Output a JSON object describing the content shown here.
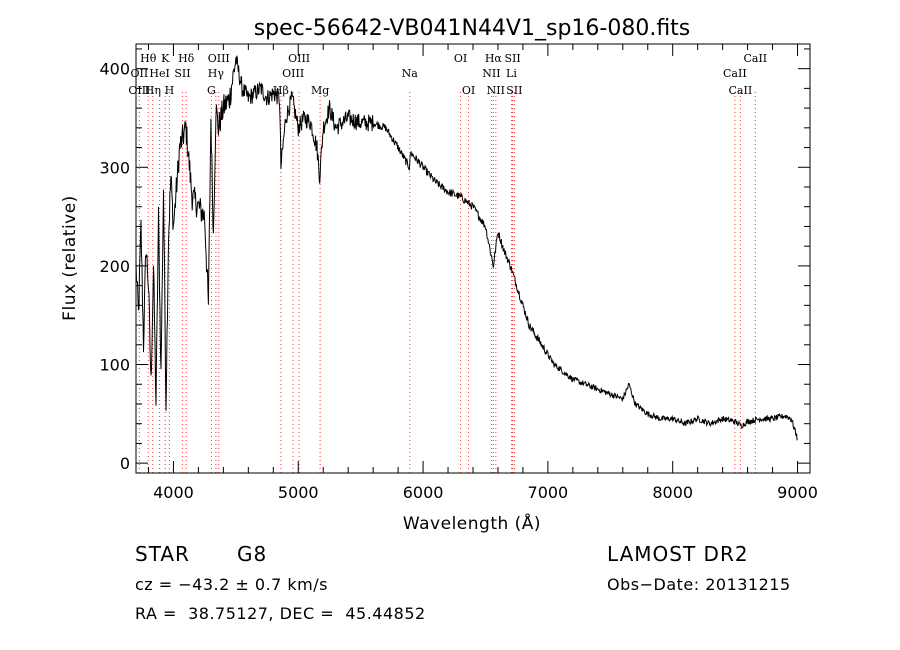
{
  "chart_data": {
    "type": "line",
    "title": "spec-56642-VB041N44V1_sp16-080.fits",
    "xlabel": "Wavelength (Å)",
    "ylabel": "Flux (relative)",
    "xlim": [
      3700,
      9100
    ],
    "ylim": [
      -10,
      425
    ],
    "xticks": [
      4000,
      5000,
      6000,
      7000,
      8000,
      9000
    ],
    "yticks": [
      0,
      100,
      200,
      300,
      400
    ],
    "grid": false,
    "series": [
      {
        "x": [
          3700,
          3720,
          3740,
          3760,
          3780,
          3800,
          3820,
          3840,
          3860,
          3880,
          3900,
          3920,
          3940,
          3960,
          3980,
          4000,
          4050,
          4100,
          4150,
          4200,
          4250,
          4280,
          4300,
          4320,
          4340,
          4360,
          4400,
          4450,
          4500,
          4550,
          4600,
          4650,
          4700,
          4750,
          4800,
          4850,
          4861,
          4900,
          4950,
          5000,
          5050,
          5100,
          5150,
          5172,
          5200,
          5250,
          5300,
          5400,
          5500,
          5600,
          5700,
          5800,
          5890,
          5900,
          6000,
          6100,
          6200,
          6300,
          6400,
          6500,
          6563,
          6600,
          6650,
          6700,
          6750,
          6800,
          6850,
          6900,
          6950,
          7000,
          7050,
          7100,
          7150,
          7200,
          7300,
          7400,
          7500,
          7600,
          7650,
          7700,
          7800,
          7900,
          8000,
          8100,
          8200,
          8300,
          8400,
          8500,
          8550,
          8600,
          8700,
          8800,
          8900,
          8950,
          9000
        ],
        "y": [
          200,
          150,
          240,
          120,
          220,
          180,
          80,
          200,
          60,
          250,
          90,
          280,
          60,
          230,
          290,
          240,
          320,
          340,
          270,
          260,
          250,
          160,
          350,
          230,
          360,
          340,
          360,
          370,
          410,
          380,
          370,
          375,
          380,
          370,
          375,
          370,
          300,
          350,
          370,
          340,
          350,
          345,
          320,
          290,
          340,
          360,
          340,
          350,
          345,
          345,
          340,
          320,
          300,
          315,
          300,
          285,
          275,
          270,
          260,
          240,
          200,
          235,
          215,
          200,
          180,
          160,
          140,
          130,
          120,
          110,
          100,
          95,
          90,
          85,
          80,
          75,
          70,
          65,
          80,
          60,
          50,
          45,
          45,
          40,
          45,
          40,
          45,
          42,
          38,
          42,
          45,
          45,
          48,
          45,
          25
        ]
      }
    ],
    "line_labels": [
      {
        "label": "Hθ",
        "x": 3798,
        "row": 0
      },
      {
        "label": "K",
        "x": 3934,
        "row": 0
      },
      {
        "label": "Hδ",
        "x": 4102,
        "row": 0
      },
      {
        "label": "OIII",
        "x": 4363,
        "row": 0
      },
      {
        "label": "OIII",
        "x": 5007,
        "row": 0
      },
      {
        "label": "OI",
        "x": 6300,
        "row": 0
      },
      {
        "label": "Hα",
        "x": 6563,
        "row": 0
      },
      {
        "label": "SII",
        "x": 6717,
        "row": 0
      },
      {
        "label": "CaII",
        "x": 8662,
        "row": 0
      },
      {
        "label": "OII",
        "x": 3727,
        "row": 1
      },
      {
        "label": "HeI",
        "x": 3889,
        "row": 1
      },
      {
        "label": "SII",
        "x": 4072,
        "row": 1
      },
      {
        "label": "Hγ",
        "x": 4340,
        "row": 1
      },
      {
        "label": "OIII",
        "x": 4959,
        "row": 1
      },
      {
        "label": "Na",
        "x": 5893,
        "row": 1
      },
      {
        "label": "NII",
        "x": 6548,
        "row": 1
      },
      {
        "label": "Li",
        "x": 6708,
        "row": 1
      },
      {
        "label": "CaII",
        "x": 8498,
        "row": 1
      },
      {
        "label": "OIII",
        "x": 3727,
        "row": 2
      },
      {
        "label": "Hη",
        "x": 3835,
        "row": 2
      },
      {
        "label": "H",
        "x": 3968,
        "row": 2
      },
      {
        "label": "G",
        "x": 4304,
        "row": 2
      },
      {
        "label": "Hβ",
        "x": 4861,
        "row": 2
      },
      {
        "label": "Mg",
        "x": 5175,
        "row": 2
      },
      {
        "label": "OI",
        "x": 6364,
        "row": 2
      },
      {
        "label": "NII",
        "x": 6583,
        "row": 2
      },
      {
        "label": "SII",
        "x": 6731,
        "row": 2
      },
      {
        "label": "CaII",
        "x": 8542,
        "row": 2
      }
    ],
    "marker_lines": [
      3727,
      3798,
      3835,
      3889,
      3934,
      3968,
      4072,
      4102,
      4304,
      4340,
      4363,
      4861,
      4959,
      5007,
      5175,
      5893,
      6300,
      6364,
      6548,
      6563,
      6583,
      6708,
      6717,
      6731,
      8498,
      8542,
      8662
    ],
    "colors": {
      "spectrum": "#000000",
      "markers": "#e0403a"
    }
  },
  "info": {
    "object_class": "STAR",
    "subclass": "G8",
    "survey": "LAMOST DR2",
    "cz": "cz = −43.2 ± 0.7 km/s",
    "obs_date": "Obs−Date: 20131215",
    "coords": "RA =  38.75127, DEC =  45.44852"
  }
}
